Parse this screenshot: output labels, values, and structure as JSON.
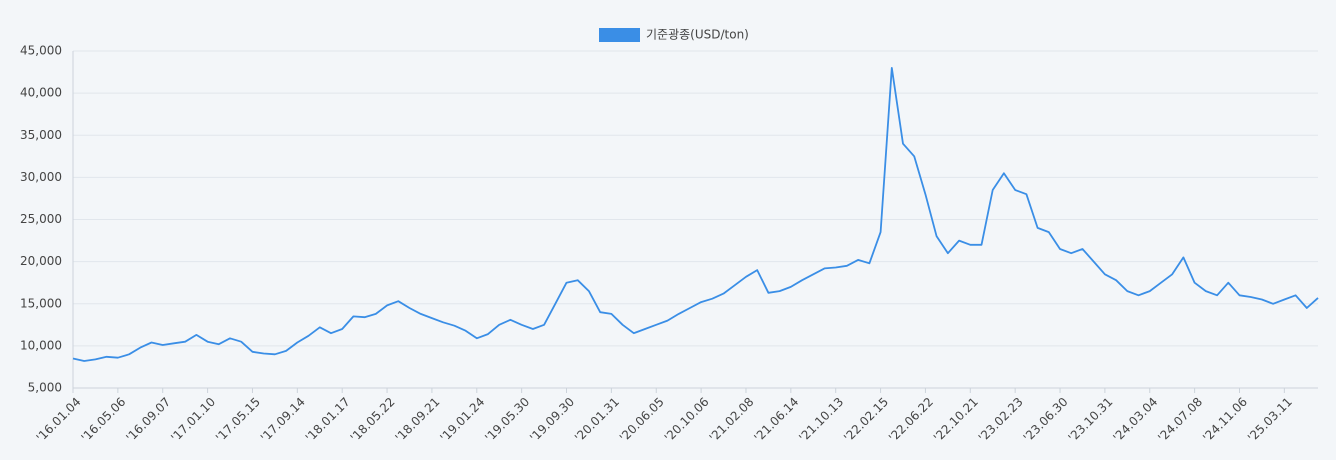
{
  "chart_data": {
    "type": "line",
    "legend_position": "top",
    "grid": true,
    "series": [
      {
        "name": "기준광종(USD/ton)",
        "color": "#3a8ee6",
        "values": [
          8500,
          8200,
          8400,
          8700,
          8600,
          9000,
          9800,
          10400,
          10100,
          10300,
          10500,
          11300,
          10500,
          10200,
          10900,
          10500,
          9300,
          9100,
          9000,
          9400,
          10400,
          11200,
          12200,
          11500,
          12000,
          13500,
          13400,
          13800,
          14800,
          15300,
          14500,
          13800,
          13300,
          12800,
          12400,
          11800,
          10900,
          11400,
          12500,
          13100,
          12500,
          12000,
          12500,
          15000,
          17500,
          17800,
          16500,
          14000,
          13800,
          12500,
          11500,
          12000,
          12500,
          13000,
          13800,
          14500,
          15200,
          15600,
          16200,
          17200,
          18200,
          19000,
          16300,
          16500,
          17000,
          17800,
          18500,
          19200,
          19300,
          19500,
          20200,
          19800,
          23500,
          43000,
          34000,
          32500,
          28000,
          23000,
          21000,
          22500,
          22000,
          22000,
          28500,
          30500,
          28500,
          28000,
          24000,
          23500,
          21500,
          21000,
          21500,
          20000,
          18500,
          17800,
          16500,
          16000,
          16500,
          17500,
          18500,
          20500,
          17500,
          16500,
          16000,
          17500,
          16000,
          15800,
          15500,
          15000,
          15500,
          16000,
          14500,
          15700
        ]
      }
    ],
    "categories": [
      "'16.01.04",
      null,
      null,
      null,
      "'16.05.06",
      null,
      null,
      null,
      "'16.09.07",
      null,
      null,
      null,
      "'17.01.10",
      null,
      null,
      null,
      "'17.05.15",
      null,
      null,
      null,
      "'17.09.14",
      null,
      null,
      null,
      "'18.01.17",
      null,
      null,
      null,
      "'18.05.22",
      null,
      null,
      null,
      "'18.09.21",
      null,
      null,
      null,
      "'19.01.24",
      null,
      null,
      null,
      "'19.05.30",
      null,
      null,
      null,
      "'19.09.30",
      null,
      null,
      null,
      "'20.01.31",
      null,
      null,
      null,
      "'20.06.05",
      null,
      null,
      null,
      "'20.10.06",
      null,
      null,
      null,
      "'21.02.08",
      null,
      null,
      null,
      "'21.06.14",
      null,
      null,
      null,
      "'21.10.13",
      null,
      null,
      null,
      "'22.02.15",
      null,
      null,
      null,
      "'22.06.22",
      null,
      null,
      null,
      "'22.10.21",
      null,
      null,
      null,
      "'23.02.23",
      null,
      null,
      null,
      "'23.06.30",
      null,
      null,
      null,
      "'23.10.31",
      null,
      null,
      null,
      "'24.03.04",
      null,
      null,
      null,
      "'24.07.08",
      null,
      null,
      null,
      "'24.11.06",
      null,
      null,
      null,
      "'25.03.11",
      null,
      null,
      null
    ],
    "ylim": [
      5000,
      45000
    ],
    "yticks": [
      {
        "value": 5000,
        "label": "5,000"
      },
      {
        "value": 10000,
        "label": "10,000"
      },
      {
        "value": 15000,
        "label": "15,000"
      },
      {
        "value": 20000,
        "label": "20,000"
      },
      {
        "value": 25000,
        "label": "25,000"
      },
      {
        "value": 30000,
        "label": "30,000"
      },
      {
        "value": 35000,
        "label": "35,000"
      },
      {
        "value": 40000,
        "label": "40,000"
      },
      {
        "value": 45000,
        "label": "45,000"
      }
    ]
  }
}
